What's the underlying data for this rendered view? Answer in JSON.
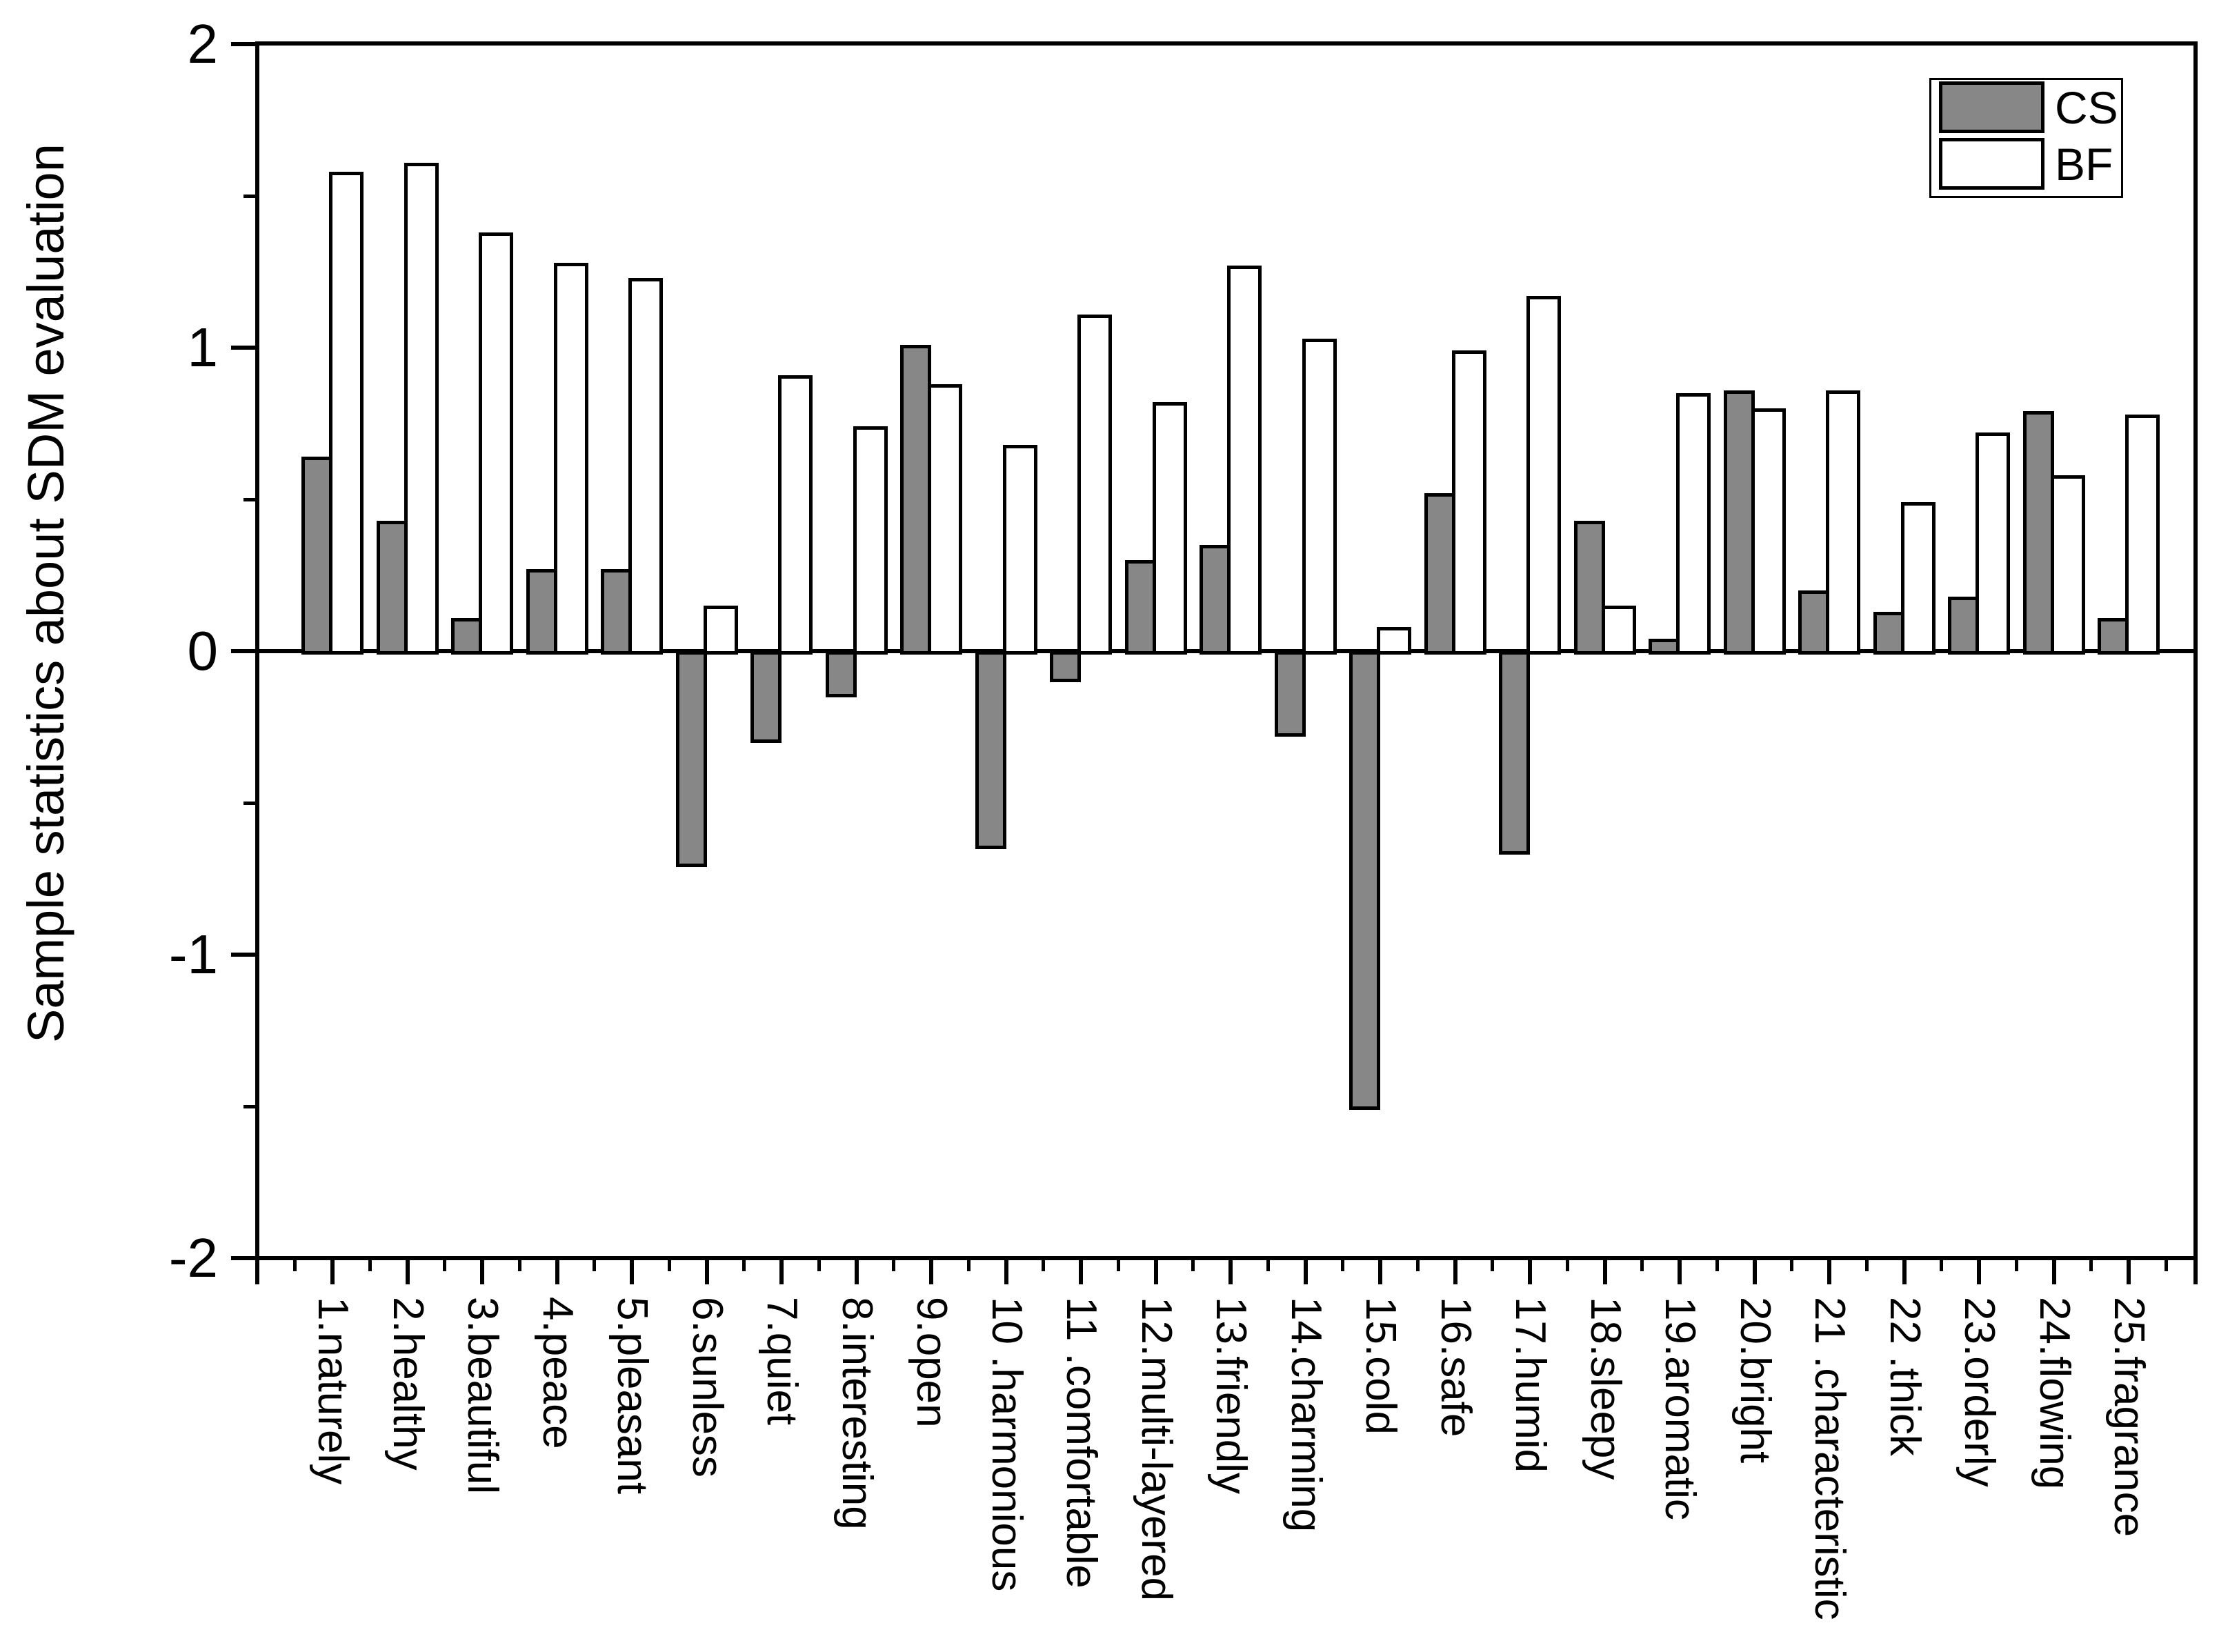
{
  "chart_data": {
    "type": "bar",
    "title": "",
    "xlabel": "",
    "ylabel": "Sample statistics about SDM evaluation",
    "ylim": [
      -2,
      2
    ],
    "y_major_ticks": [
      2,
      1,
      0,
      -1,
      -2
    ],
    "y_minor_ticks": [
      1.5,
      0.5,
      -0.5,
      -1.5
    ],
    "grid": false,
    "legend": {
      "position": "top-right",
      "entries": [
        "CS",
        "BF"
      ]
    },
    "colors": {
      "cs_fill": "#878787",
      "bf_fill": "#ffffff",
      "axis": "#000000",
      "background": "#ffffff"
    },
    "categories": [
      "1.naturely",
      "2.healthy",
      "3.beautiful",
      "4.peace",
      "5.pleasant",
      "6.sunless",
      "7.quiet",
      "8.interesting",
      "9.open",
      "10 .harmonious",
      "11 .comfortable",
      "12.multi-layered",
      "13.friendly",
      "14.charming",
      "15.cold",
      "16.safe",
      "17.humid",
      "18.sleepy",
      "19.aromatic",
      "20.bright",
      "21 .characteristic",
      "22 .thick",
      "23.orderly",
      "24.flowing",
      "25.fragrance"
    ],
    "series": [
      {
        "name": "CS",
        "values": [
          0.64,
          0.43,
          0.11,
          0.27,
          0.27,
          -0.7,
          -0.29,
          -0.14,
          1.01,
          -0.64,
          -0.09,
          0.3,
          0.35,
          -0.27,
          -1.5,
          0.52,
          -0.66,
          0.43,
          0.04,
          0.86,
          0.2,
          0.13,
          0.18,
          0.79,
          0.11
        ]
      },
      {
        "name": "BF",
        "values": [
          1.58,
          1.61,
          1.38,
          1.28,
          1.23,
          0.15,
          0.91,
          0.74,
          0.88,
          0.68,
          1.11,
          0.82,
          1.27,
          1.03,
          0.08,
          0.99,
          1.17,
          0.15,
          0.85,
          0.8,
          0.86,
          0.49,
          0.72,
          0.58,
          0.78
        ]
      }
    ]
  }
}
